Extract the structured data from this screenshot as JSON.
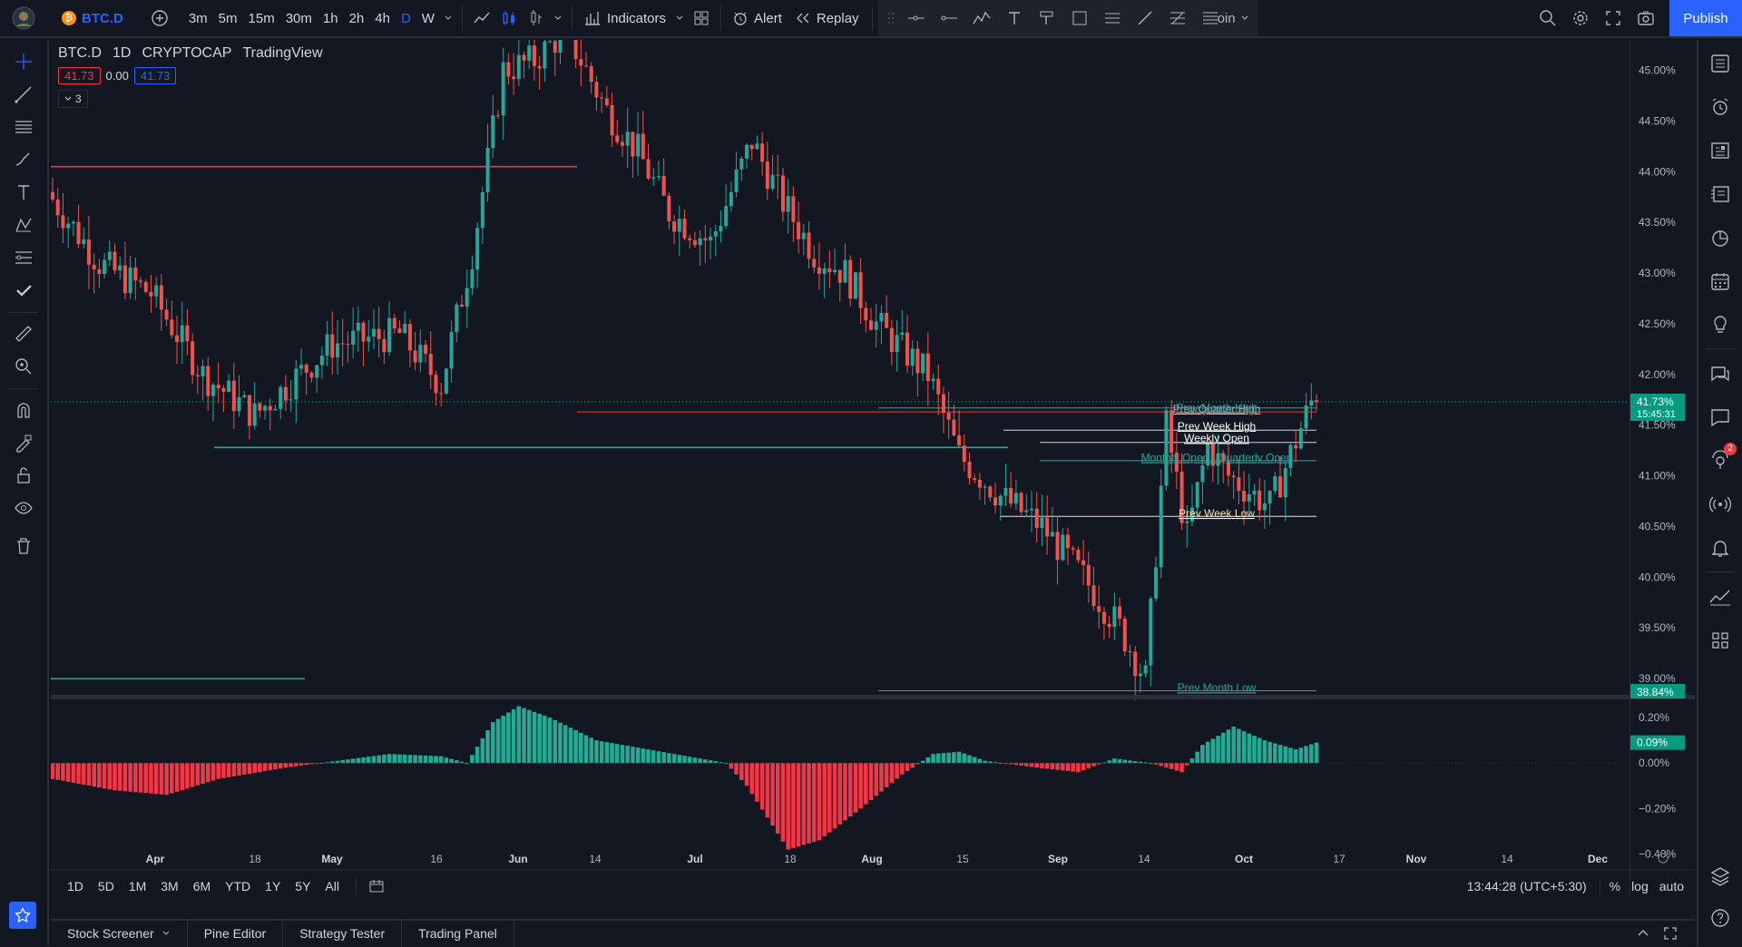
{
  "topbar": {
    "symbol": "BTC.D",
    "timeframes": [
      "3m",
      "5m",
      "15m",
      "30m",
      "1h",
      "2h",
      "4h",
      "D",
      "W"
    ],
    "active_timeframe": "D",
    "indicators_label": "Indicators",
    "alert_label": "Alert",
    "replay_label": "Replay",
    "publish_label": "Publish",
    "partial_text": "oin"
  },
  "legend": {
    "title_parts": [
      "BTC.D",
      "1D",
      "CRYPTOCAP",
      "TradingView"
    ],
    "sell_price": "41.73",
    "spread": "0.00",
    "buy_price": "41.73",
    "collapsed_count": "3"
  },
  "chart_data": {
    "type": "candlestick",
    "symbol": "BTC.D",
    "interval": "1D",
    "ylim": [
      38.84,
      45.3
    ],
    "price_ticks": [
      "45.00%",
      "44.50%",
      "44.00%",
      "43.50%",
      "43.00%",
      "42.50%",
      "42.00%",
      "41.50%",
      "41.00%",
      "40.50%",
      "40.00%",
      "39.50%",
      "39.00%"
    ],
    "time_ticks": [
      "Apr",
      "18",
      "May",
      "16",
      "Jun",
      "14",
      "Jul",
      "18",
      "Aug",
      "15",
      "Sep",
      "14",
      "Oct",
      "17",
      "Nov",
      "14",
      "Dec"
    ],
    "current_price_label": "41.73%",
    "countdown_label": "15:45:31",
    "low_price_label": "38.84%",
    "level_labels": [
      {
        "text": "Prev Quarter High",
        "color": "#b2b5be"
      },
      {
        "text": "Prev Month High",
        "color": "#26a69a"
      },
      {
        "text": "Prev Week High",
        "color": "#ffffff"
      },
      {
        "text": "Weekly Open",
        "color": "#ffffff"
      },
      {
        "text": "Monthly Open / Quarterly Open",
        "color": "#26a69a"
      },
      {
        "text": "Prev Week Low",
        "color": "#f5e6b3"
      },
      {
        "text": "Prev Month Low",
        "color": "#26a69a"
      }
    ],
    "oscillator": {
      "ticks": [
        "0.20%",
        "0.00%",
        "−0.20%",
        "−0.40%"
      ],
      "current_label": "0.09%",
      "ylim": [
        -0.45,
        0.28
      ]
    },
    "colors": {
      "up": "#26a69a",
      "down": "#ef5350",
      "hist_up": "#22ab94",
      "hist_down": "#f23645"
    }
  },
  "footer": {
    "ranges": [
      "1D",
      "5D",
      "1M",
      "3M",
      "6M",
      "YTD",
      "1Y",
      "5Y",
      "All"
    ],
    "clock": "13:44:28 (UTC+5:30)",
    "percent_label": "%",
    "log_label": "log",
    "auto_label": "auto"
  },
  "bottom_tabs": [
    "Stock Screener",
    "Pine Editor",
    "Strategy Tester",
    "Trading Panel"
  ],
  "right_sidebar": {
    "notification_count": "2"
  }
}
